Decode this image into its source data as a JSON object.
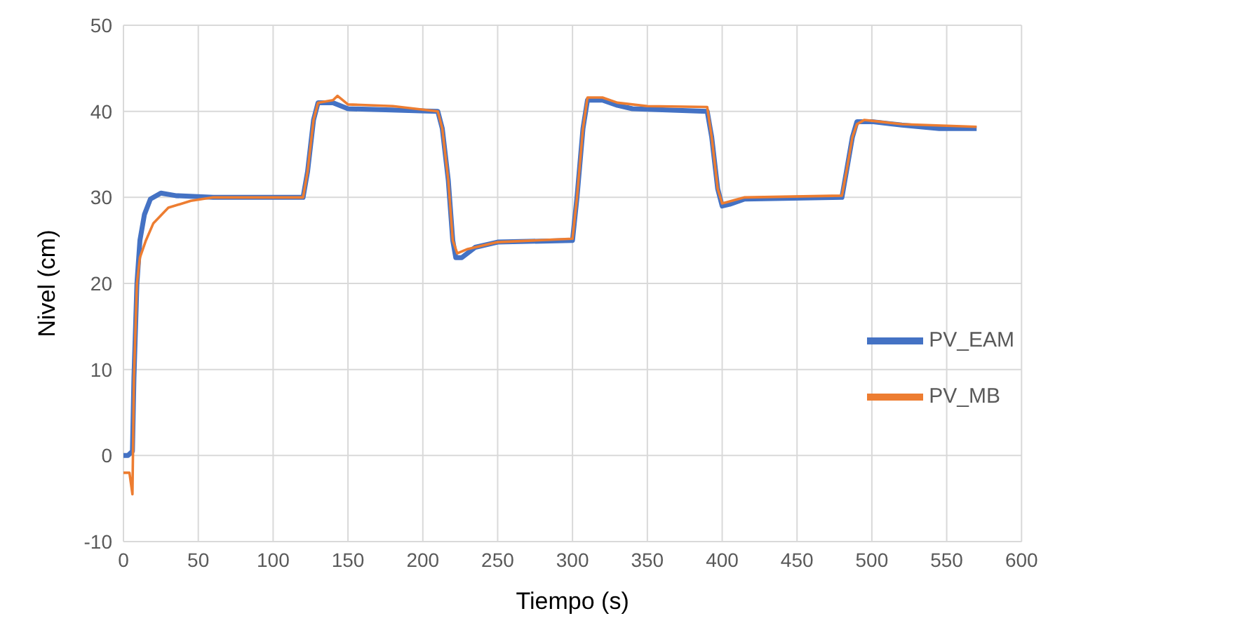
{
  "chart_data": {
    "type": "line",
    "xlabel": "Tiempo (s)",
    "ylabel": "Nivel (cm)",
    "xlim": [
      0,
      600
    ],
    "xticks": [
      0,
      50,
      100,
      150,
      200,
      250,
      300,
      350,
      400,
      450,
      500,
      550,
      600
    ],
    "ylim": [
      -10,
      50
    ],
    "yticks": [
      -10,
      0,
      10,
      20,
      30,
      40,
      50
    ],
    "grid": true,
    "legend": "right",
    "marker": "none",
    "line_style": "solid",
    "series": [
      {
        "name": "PV_EAM",
        "color": "#4472c4",
        "x": [
          0,
          3,
          6,
          7,
          9,
          11,
          14,
          18,
          25,
          35,
          60,
          120,
          123,
          127,
          130,
          140,
          150,
          210,
          213,
          217,
          220,
          222,
          226,
          235,
          250,
          300,
          303,
          307,
          310,
          320,
          330,
          340,
          390,
          393,
          397,
          400,
          405,
          415,
          480,
          483,
          487,
          490,
          500,
          520,
          545,
          570
        ],
        "values": [
          0,
          0,
          0.5,
          9,
          20,
          25,
          28,
          29.8,
          30.5,
          30.2,
          30,
          30,
          33,
          39,
          41,
          41,
          40.3,
          40,
          38,
          32,
          25,
          23,
          23,
          24.2,
          24.8,
          25,
          30,
          38,
          41.3,
          41.3,
          40.7,
          40.3,
          40,
          37,
          31,
          29,
          29.2,
          29.8,
          30,
          33,
          37,
          38.8,
          38.8,
          38.4,
          38,
          38
        ]
      },
      {
        "name": "PV_MB",
        "color": "#ed7d31",
        "x": [
          0,
          4,
          6,
          7,
          9,
          11,
          15,
          20,
          30,
          45,
          60,
          120,
          123,
          127,
          130,
          140,
          143,
          150,
          180,
          210,
          213,
          217,
          220,
          223,
          230,
          250,
          300,
          303,
          307,
          310,
          320,
          330,
          350,
          390,
          393,
          397,
          400,
          415,
          480,
          483,
          487,
          490,
          495,
          505,
          520,
          570
        ],
        "values": [
          -2,
          -2,
          -4.5,
          9,
          20,
          23,
          25,
          27,
          28.8,
          29.6,
          30,
          30,
          33,
          39,
          41,
          41.3,
          41.8,
          40.8,
          40.6,
          40,
          38,
          32,
          25,
          23.5,
          24,
          24.8,
          25.2,
          30,
          38,
          41.6,
          41.6,
          41,
          40.6,
          40.5,
          37,
          31,
          29.3,
          30,
          30.2,
          33,
          37,
          38.5,
          39,
          38.8,
          38.5,
          38.2
        ]
      }
    ]
  }
}
